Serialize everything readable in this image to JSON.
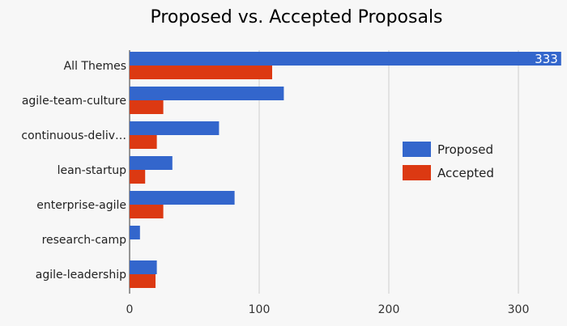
{
  "chart_data": {
    "type": "bar",
    "orientation": "horizontal",
    "title": "Proposed vs. Accepted Proposals",
    "categories": [
      "All Themes",
      "agile-team-culture",
      "continuous-deliv…",
      "lean-startup",
      "enterprise-agile",
      "research-camp",
      "agile-leadership"
    ],
    "series": [
      {
        "name": "Proposed",
        "color": "#3366cc",
        "values": [
          333,
          119,
          69,
          33,
          81,
          8,
          21
        ]
      },
      {
        "name": "Accepted",
        "color": "#dc3912",
        "values": [
          110,
          26,
          21,
          12,
          26,
          0,
          20
        ]
      }
    ],
    "x_ticks": [
      0,
      100,
      200,
      300
    ],
    "xlim": [
      0,
      340
    ],
    "data_labels": [
      {
        "series": "Proposed",
        "category": "All Themes",
        "text": "333"
      }
    ],
    "grid": true,
    "legend_position": "right"
  }
}
